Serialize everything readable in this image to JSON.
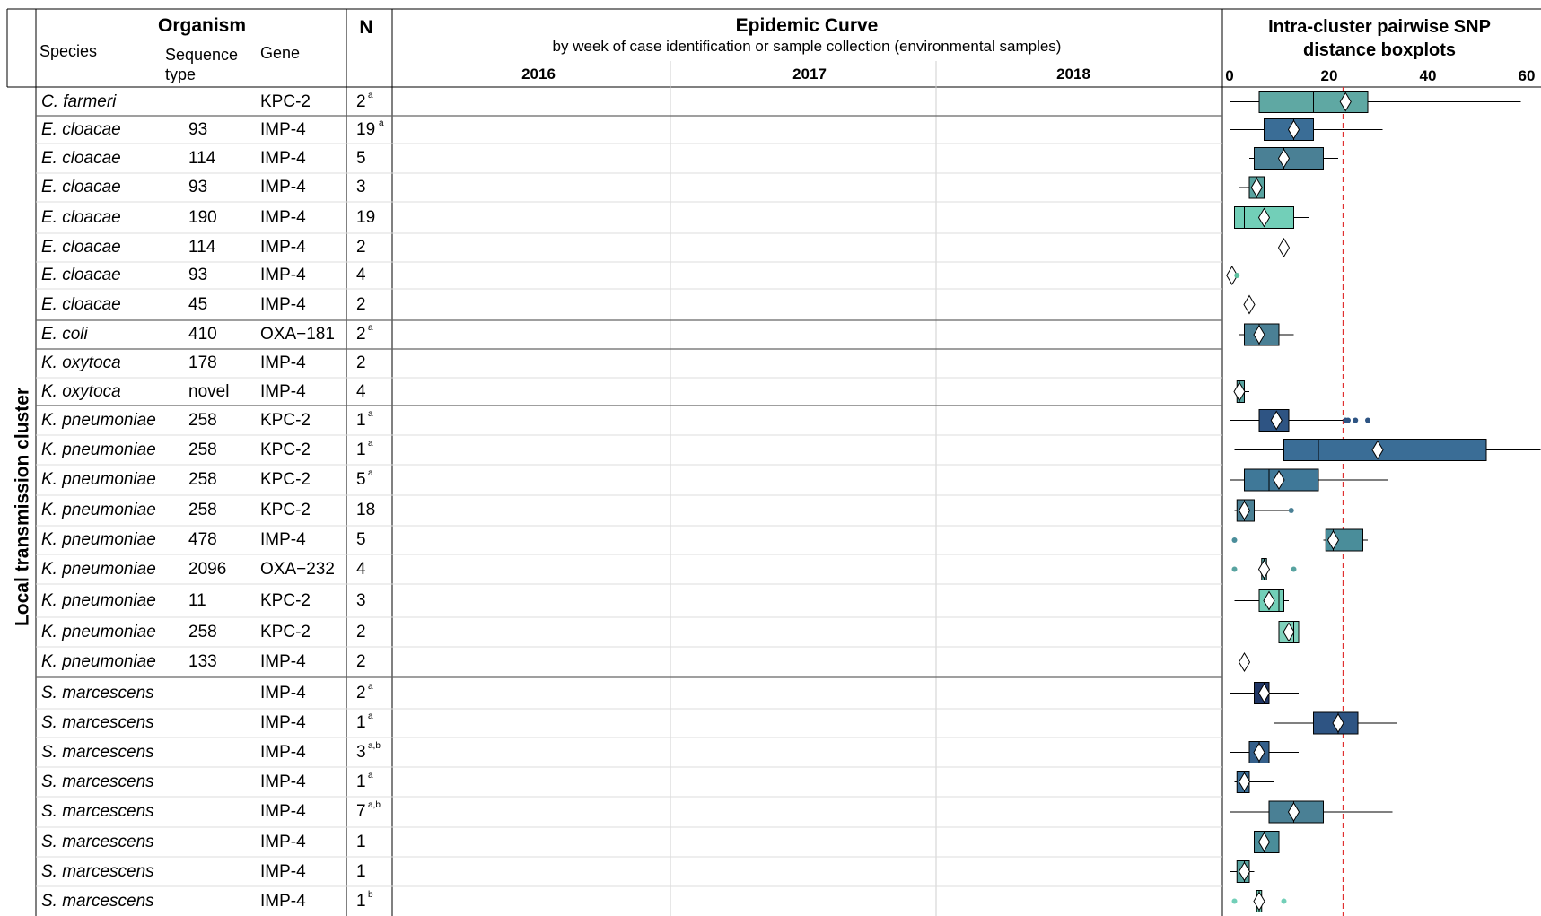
{
  "header": {
    "organism": "Organism",
    "species": "Species",
    "sequence_type": "Sequence\ntype",
    "gene": "Gene",
    "n": "N",
    "epi_title": "Epidemic Curve",
    "epi_subtitle": "by week of case identification or sample collection (environmental samples)",
    "years": [
      "2016",
      "2017",
      "2018"
    ],
    "snp_title_line1": "Intra-cluster pairwise SNP",
    "snp_title_line2": "distance boxplots",
    "snp_ticks": [
      "0",
      "20",
      "40",
      "60"
    ]
  },
  "side_label": "Local transmission cluster",
  "colors": {
    "orange_fill": "#e06a2b",
    "orange_open": "#f0915e",
    "purple": "#8c85c8",
    "green": "#2e9e74",
    "green_open": "#5cc1a0",
    "teal_light": "#7fd1bc",
    "teal_mid": "#4a8d9a",
    "blue_dark": "#274a7c",
    "threshold_red": "#e03030"
  },
  "chart_data": {
    "type": "table",
    "snp_axis": {
      "min": 0,
      "max": 60,
      "threshold": 23
    },
    "clusters": [
      {
        "species": "C. farmeri",
        "st": "",
        "gene": "KPC-2",
        "n": "2",
        "fn": "a",
        "box": {
          "min": 0,
          "q1": 6,
          "med": 17,
          "q3": 28,
          "max": 59,
          "mean": 23.5
        },
        "color": "#5fa8a3",
        "outliers": []
      },
      {
        "species": "E. cloacae",
        "st": "93",
        "gene": "IMP-4",
        "n": "19",
        "fn": "a",
        "box": {
          "min": 0,
          "q1": 7,
          "med": 13,
          "q3": 17,
          "max": 31,
          "mean": 13
        },
        "color": "#3a6d96",
        "outliers": []
      },
      {
        "species": "E. cloacae",
        "st": "114",
        "gene": "IMP-4",
        "n": "5",
        "fn": "",
        "box": {
          "min": 4,
          "q1": 5,
          "med": 11,
          "q3": 19,
          "max": 22,
          "mean": 11
        },
        "color": "#4a8095",
        "outliers": []
      },
      {
        "species": "E. cloacae",
        "st": "93",
        "gene": "IMP-4",
        "n": "3",
        "fn": "",
        "box": {
          "min": 2,
          "q1": 4,
          "med": 5.5,
          "q3": 7,
          "max": 7,
          "mean": 5.5
        },
        "color": "#58a3a0",
        "outliers": []
      },
      {
        "species": "E. cloacae",
        "st": "190",
        "gene": "IMP-4",
        "n": "19",
        "fn": "",
        "box": {
          "min": 1,
          "q1": 1,
          "med": 3,
          "q3": 13,
          "max": 16,
          "mean": 7
        },
        "color": "#72cfb8",
        "outliers": []
      },
      {
        "species": "E. cloacae",
        "st": "114",
        "gene": "IMP-4",
        "n": "2",
        "fn": "",
        "box": null,
        "mean": 11,
        "color": "",
        "outliers": []
      },
      {
        "species": "E. cloacae",
        "st": "93",
        "gene": "IMP-4",
        "n": "4",
        "fn": "",
        "box": null,
        "mean": 0.5,
        "color": "",
        "outliers": [
          1.5
        ]
      },
      {
        "species": "E. cloacae",
        "st": "45",
        "gene": "IMP-4",
        "n": "2",
        "fn": "",
        "box": null,
        "mean": 4,
        "color": "",
        "outliers": []
      },
      {
        "species": "E. coli",
        "st": "410",
        "gene": "OXA−181",
        "n": "2",
        "fn": "a",
        "box": {
          "min": 2,
          "q1": 3,
          "med": 6,
          "q3": 10,
          "max": 13,
          "mean": 6
        },
        "color": "#4a8095",
        "outliers": []
      },
      {
        "species": "K. oxytoca",
        "st": "178",
        "gene": "IMP-4",
        "n": "2",
        "fn": "",
        "box": null,
        "mean": null,
        "color": "",
        "outliers": []
      },
      {
        "species": "K. oxytoca",
        "st": "novel",
        "gene": "IMP-4",
        "n": "4",
        "fn": "",
        "box": {
          "min": 1,
          "q1": 1.5,
          "med": 2,
          "q3": 3,
          "max": 4,
          "mean": 2
        },
        "color": "#58a3a0",
        "outliers": []
      },
      {
        "species": "K. pneumoniae",
        "st": "258",
        "gene": "KPC-2",
        "n": "1",
        "fn": "a",
        "box": {
          "min": 0,
          "q1": 6,
          "med": 9,
          "q3": 12,
          "max": 23,
          "mean": 9.5
        },
        "color": "#2e5483",
        "outliers": [
          23.5,
          24,
          25.5,
          28
        ]
      },
      {
        "species": "K. pneumoniae",
        "st": "258",
        "gene": "KPC-2",
        "n": "1",
        "fn": "a",
        "box": {
          "min": 1,
          "q1": 11,
          "med": 18,
          "q3": 52,
          "max": 63,
          "mean": 30
        },
        "color": "#3a6d96",
        "outliers": []
      },
      {
        "species": "K. pneumoniae",
        "st": "258",
        "gene": "KPC-2",
        "n": "5",
        "fn": "a",
        "box": {
          "min": 0,
          "q1": 3,
          "med": 8,
          "q3": 18,
          "max": 32,
          "mean": 10
        },
        "color": "#3f7898",
        "outliers": []
      },
      {
        "species": "K. pneumoniae",
        "st": "258",
        "gene": "KPC-2",
        "n": "18",
        "fn": "",
        "box": {
          "min": 1,
          "q1": 1.5,
          "med": 3,
          "q3": 5,
          "max": 12,
          "mean": 3
        },
        "color": "#4a8095",
        "outliers": [
          12.5
        ]
      },
      {
        "species": "K. pneumoniae",
        "st": "478",
        "gene": "IMP-4",
        "n": "5",
        "fn": "",
        "box": {
          "min": 19,
          "q1": 19.5,
          "med": 21,
          "q3": 27,
          "max": 28,
          "mean": 21
        },
        "color": "#4a8d9a",
        "outliers": [
          1
        ]
      },
      {
        "species": "K. pneumoniae",
        "st": "2096",
        "gene": "OXA−232",
        "n": "4",
        "fn": "",
        "box": {
          "min": 6,
          "q1": 6.5,
          "med": 7,
          "q3": 7.5,
          "max": 8,
          "mean": 7
        },
        "color": "#58a3a0",
        "outliers": [
          1,
          13
        ]
      },
      {
        "species": "K. pneumoniae",
        "st": "11",
        "gene": "KPC-2",
        "n": "3",
        "fn": "",
        "box": {
          "min": 1,
          "q1": 6,
          "med": 10,
          "q3": 11,
          "max": 12,
          "mean": 8
        },
        "color": "#72cfb8",
        "outliers": []
      },
      {
        "species": "K. pneumoniae",
        "st": "258",
        "gene": "KPC-2",
        "n": "2",
        "fn": "",
        "box": {
          "min": 8,
          "q1": 10,
          "med": 13,
          "q3": 14,
          "max": 16,
          "mean": 12
        },
        "color": "#7fd1bc",
        "outliers": []
      },
      {
        "species": "K. pneumoniae",
        "st": "133",
        "gene": "IMP-4",
        "n": "2",
        "fn": "",
        "box": null,
        "mean": 3,
        "color": "",
        "outliers": []
      },
      {
        "species": "S. marcescens",
        "st": "",
        "gene": "IMP-4",
        "n": "2",
        "fn": "a",
        "box": {
          "min": 0,
          "q1": 5,
          "med": 7,
          "q3": 8,
          "max": 14,
          "mean": 7
        },
        "color": "#1f3564",
        "outliers": []
      },
      {
        "species": "S. marcescens",
        "st": "",
        "gene": "IMP-4",
        "n": "1",
        "fn": "a",
        "box": {
          "min": 9,
          "q1": 17,
          "med": 22,
          "q3": 26,
          "max": 34,
          "mean": 22
        },
        "color": "#2e5483",
        "outliers": []
      },
      {
        "species": "S. marcescens",
        "st": "",
        "gene": "IMP-4",
        "n": "3",
        "fn": "a,b",
        "box": {
          "min": 0,
          "q1": 4,
          "med": 6,
          "q3": 8,
          "max": 14,
          "mean": 6
        },
        "color": "#345f8a",
        "outliers": []
      },
      {
        "species": "S. marcescens",
        "st": "",
        "gene": "IMP-4",
        "n": "1",
        "fn": "a",
        "box": {
          "min": 1,
          "q1": 1.5,
          "med": 3,
          "q3": 4,
          "max": 9,
          "mean": 3
        },
        "color": "#3a6d96",
        "outliers": []
      },
      {
        "species": "S. marcescens",
        "st": "",
        "gene": "IMP-4",
        "n": "7",
        "fn": "a,b",
        "box": {
          "min": 0,
          "q1": 8,
          "med": 13,
          "q3": 19,
          "max": 33,
          "mean": 13
        },
        "color": "#4a8095",
        "outliers": []
      },
      {
        "species": "S. marcescens",
        "st": "",
        "gene": "IMP-4",
        "n": "1",
        "fn": "",
        "box": {
          "min": 3,
          "q1": 5,
          "med": 7,
          "q3": 10,
          "max": 14,
          "mean": 7
        },
        "color": "#4a8d9a",
        "outliers": []
      },
      {
        "species": "S. marcescens",
        "st": "",
        "gene": "IMP-4",
        "n": "1",
        "fn": "",
        "box": {
          "min": 0,
          "q1": 1.5,
          "med": 3,
          "q3": 4,
          "max": 5,
          "mean": 3
        },
        "color": "#58a3a0",
        "outliers": []
      },
      {
        "species": "S. marcescens",
        "st": "",
        "gene": "IMP-4",
        "n": "1",
        "fn": "b",
        "box": {
          "min": 5,
          "q1": 5.5,
          "med": 6,
          "q3": 6.5,
          "max": 7,
          "mean": 6
        },
        "color": "#72cfb8",
        "outliers": [
          1,
          11
        ]
      }
    ]
  }
}
